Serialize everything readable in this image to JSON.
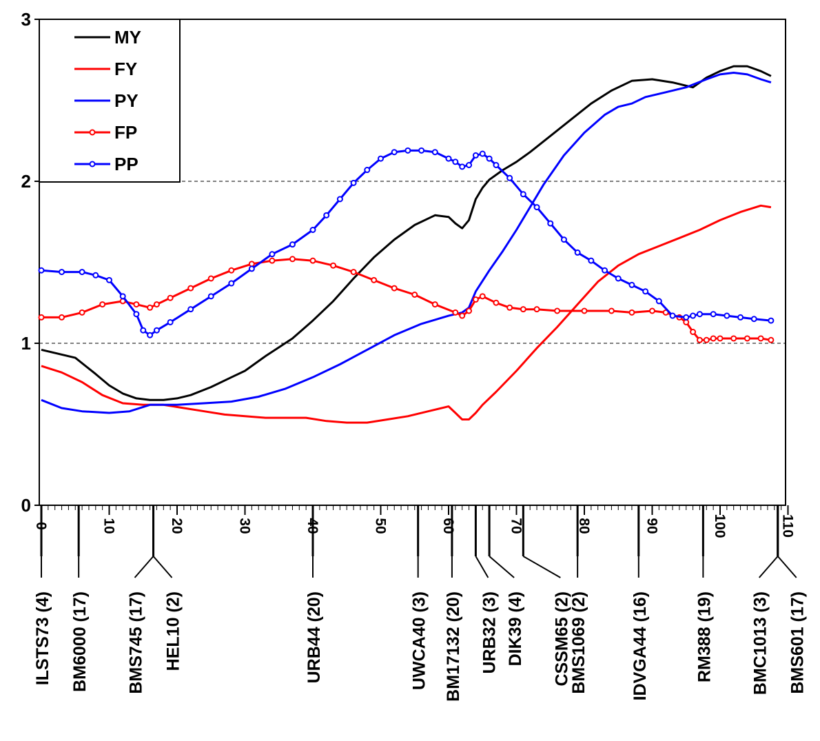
{
  "chart_data": {
    "type": "line",
    "title": "",
    "xlabel": "",
    "ylabel": "",
    "xlim": [
      0,
      110
    ],
    "ylim": [
      0,
      3
    ],
    "y_ticks": [
      0,
      1,
      2,
      3
    ],
    "x_ticks": [
      0,
      10,
      20,
      30,
      40,
      50,
      60,
      70,
      80,
      90,
      100,
      110
    ],
    "dashed_reference_lines": [
      1,
      2
    ],
    "legend_position": "top-left",
    "series": [
      {
        "name": "MY",
        "color": "#000000",
        "markers": false,
        "x": [
          0,
          2,
          5,
          8,
          10,
          12,
          14,
          16,
          18,
          20,
          22,
          25,
          28,
          30,
          33,
          37,
          40,
          43,
          46,
          49,
          52,
          55,
          58,
          60,
          61,
          62,
          63,
          64,
          65,
          66,
          68,
          70,
          72,
          75,
          78,
          81,
          84,
          87,
          90,
          93,
          96,
          98,
          100,
          102,
          104,
          106,
          107.5
        ],
        "y": [
          0.96,
          0.94,
          0.91,
          0.81,
          0.74,
          0.69,
          0.66,
          0.65,
          0.65,
          0.66,
          0.68,
          0.73,
          0.79,
          0.83,
          0.92,
          1.03,
          1.14,
          1.26,
          1.4,
          1.53,
          1.64,
          1.73,
          1.79,
          1.78,
          1.74,
          1.71,
          1.76,
          1.89,
          1.96,
          2.01,
          2.07,
          2.12,
          2.18,
          2.28,
          2.38,
          2.48,
          2.56,
          2.62,
          2.63,
          2.61,
          2.58,
          2.64,
          2.68,
          2.71,
          2.71,
          2.68,
          2.65
        ]
      },
      {
        "name": "FY",
        "color": "#ff0000",
        "markers": false,
        "x": [
          0,
          3,
          6,
          9,
          12,
          15,
          18,
          21,
          24,
          27,
          30,
          33,
          36,
          39,
          42,
          45,
          48,
          51,
          54,
          57,
          60,
          61,
          62,
          63,
          64,
          65,
          67,
          70,
          73,
          76,
          79,
          82,
          85,
          88,
          91,
          94,
          97,
          100,
          103,
          106,
          107.5
        ],
        "y": [
          0.86,
          0.82,
          0.76,
          0.68,
          0.63,
          0.62,
          0.62,
          0.6,
          0.58,
          0.56,
          0.55,
          0.54,
          0.54,
          0.54,
          0.52,
          0.51,
          0.51,
          0.53,
          0.55,
          0.58,
          0.61,
          0.57,
          0.53,
          0.53,
          0.57,
          0.62,
          0.7,
          0.83,
          0.97,
          1.1,
          1.24,
          1.38,
          1.48,
          1.55,
          1.6,
          1.65,
          1.7,
          1.76,
          1.81,
          1.85,
          1.84
        ]
      },
      {
        "name": "PY",
        "color": "#0000ff",
        "markers": false,
        "x": [
          0,
          3,
          6,
          10,
          13,
          16,
          20,
          24,
          28,
          32,
          36,
          40,
          44,
          48,
          52,
          56,
          60,
          62,
          63,
          64,
          66,
          68,
          70,
          72,
          74,
          77,
          80,
          83,
          85,
          87,
          89,
          92,
          95,
          98,
          100,
          102,
          104,
          106,
          107.5
        ],
        "y": [
          0.65,
          0.6,
          0.58,
          0.57,
          0.58,
          0.62,
          0.62,
          0.63,
          0.64,
          0.67,
          0.72,
          0.79,
          0.87,
          0.96,
          1.05,
          1.12,
          1.17,
          1.19,
          1.22,
          1.32,
          1.45,
          1.57,
          1.7,
          1.84,
          1.98,
          2.16,
          2.3,
          2.41,
          2.46,
          2.48,
          2.52,
          2.55,
          2.58,
          2.63,
          2.66,
          2.67,
          2.66,
          2.63,
          2.61
        ]
      },
      {
        "name": "FP",
        "color": "#ff0000",
        "markers": true,
        "x": [
          0,
          3,
          6,
          9,
          12,
          14,
          16,
          17,
          19,
          22,
          25,
          28,
          31,
          34,
          37,
          40,
          43,
          46,
          49,
          52,
          55,
          58,
          61,
          62,
          63,
          64,
          65,
          67,
          69,
          71,
          73,
          76,
          80,
          84,
          87,
          90,
          92,
          94,
          95,
          96,
          97,
          98,
          99,
          100,
          102,
          104,
          106,
          107.5
        ],
        "y": [
          1.16,
          1.16,
          1.19,
          1.24,
          1.26,
          1.24,
          1.22,
          1.24,
          1.28,
          1.34,
          1.4,
          1.45,
          1.49,
          1.51,
          1.52,
          1.51,
          1.48,
          1.44,
          1.39,
          1.34,
          1.3,
          1.24,
          1.19,
          1.17,
          1.2,
          1.27,
          1.29,
          1.25,
          1.22,
          1.21,
          1.21,
          1.2,
          1.2,
          1.2,
          1.19,
          1.2,
          1.19,
          1.16,
          1.13,
          1.07,
          1.02,
          1.02,
          1.03,
          1.03,
          1.03,
          1.03,
          1.03,
          1.02
        ]
      },
      {
        "name": "PP",
        "color": "#0000ff",
        "markers": true,
        "x": [
          0,
          3,
          6,
          8,
          10,
          12,
          14,
          15,
          16,
          17,
          19,
          22,
          25,
          28,
          31,
          34,
          37,
          40,
          42,
          44,
          46,
          48,
          50,
          52,
          54,
          56,
          58,
          60,
          61,
          62,
          63,
          64,
          65,
          66,
          67,
          69,
          71,
          73,
          75,
          77,
          79,
          81,
          83,
          85,
          87,
          89,
          91,
          93,
          95,
          96,
          97,
          99,
          101,
          103,
          105,
          107.5
        ],
        "y": [
          1.45,
          1.44,
          1.44,
          1.42,
          1.39,
          1.29,
          1.18,
          1.08,
          1.05,
          1.08,
          1.13,
          1.21,
          1.29,
          1.37,
          1.46,
          1.55,
          1.61,
          1.7,
          1.79,
          1.89,
          1.99,
          2.07,
          2.14,
          2.18,
          2.19,
          2.19,
          2.18,
          2.14,
          2.12,
          2.09,
          2.1,
          2.16,
          2.17,
          2.14,
          2.1,
          2.02,
          1.92,
          1.84,
          1.74,
          1.64,
          1.56,
          1.51,
          1.45,
          1.4,
          1.36,
          1.32,
          1.26,
          1.17,
          1.16,
          1.17,
          1.18,
          1.18,
          1.17,
          1.16,
          1.15,
          1.14
        ]
      }
    ],
    "markers_row": [
      {
        "label": "ILSTS73 (4)",
        "pos": 0
      },
      {
        "label": "BM6000 (17)",
        "pos": 5.5
      },
      {
        "label": "BMS745 (17)",
        "pos": 16.5,
        "lead": -1.5
      },
      {
        "label": "HEL10 (2)",
        "pos": 16.5,
        "lead": 1.5
      },
      {
        "label": "URB44 (20)",
        "pos": 40
      },
      {
        "label": "UWCA40 (3)",
        "pos": 55.5
      },
      {
        "label": "BM17132 (20)",
        "pos": 60.5
      },
      {
        "label": "URB32 (3)",
        "pos": 64,
        "lead": 1
      },
      {
        "label": "DIK39 (4)",
        "pos": 66,
        "lead": 2
      },
      {
        "label": "CSSM65 (2)",
        "pos": 71,
        "lead": 3
      },
      {
        "label": "BMS1069 (2)",
        "pos": 79
      },
      {
        "label": "IDVGA44 (16)",
        "pos": 88
      },
      {
        "label": "RM388 (19)",
        "pos": 97.5
      },
      {
        "label": "BMC1013 (3)",
        "pos": 108.5,
        "lead": -1.5
      },
      {
        "label": "BMS601 (17)",
        "pos": 108.5,
        "lead": 1.5
      }
    ]
  }
}
